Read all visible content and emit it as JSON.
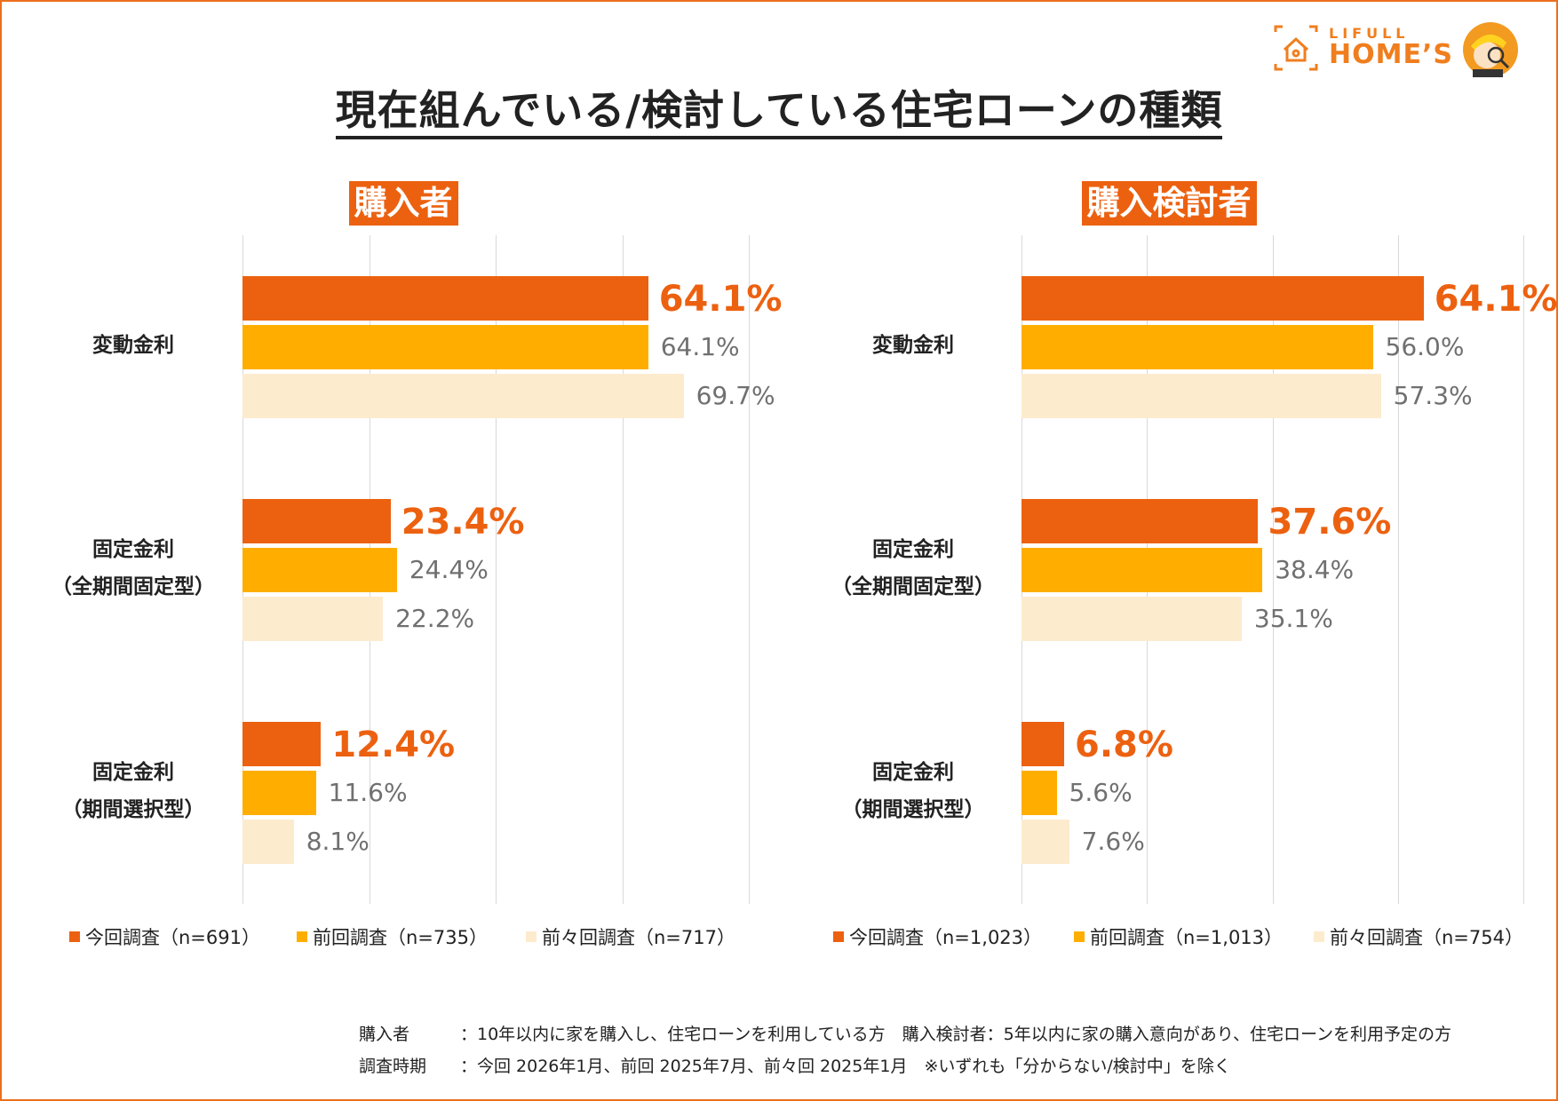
{
  "title": "現在組んでいる/検討している住宅ローンの種類",
  "logo": {
    "small": "LIFULL",
    "big": "HOME’S"
  },
  "colors": {
    "current": "#EC6110",
    "previous": "#FFAE00",
    "before_previous": "#FDEBCE",
    "accent": "#EC6F1E"
  },
  "chart_data": [
    {
      "type": "bar",
      "orientation": "horizontal",
      "title": "購入者",
      "categories": [
        "変動金利",
        "固定金利\n（全期間固定型）",
        "固定金利\n（期間選択型）"
      ],
      "category_lines": [
        [
          "変動金利"
        ],
        [
          "固定金利",
          "（全期間固定型）"
        ],
        [
          "固定金利",
          "（期間選択型）"
        ]
      ],
      "series": [
        {
          "name": "今回調査（n=691）",
          "values": [
            64.1,
            23.4,
            12.4
          ],
          "labels": [
            "64.1%",
            "23.4%",
            "12.4%"
          ]
        },
        {
          "name": "前回調査（n=735）",
          "values": [
            64.1,
            24.4,
            11.6
          ],
          "labels": [
            "64.1%",
            "24.4%",
            "11.6%"
          ]
        },
        {
          "name": "前々回調査（n=717）",
          "values": [
            69.7,
            22.2,
            8.1
          ],
          "labels": [
            "69.7%",
            "22.2%",
            "8.1%"
          ]
        }
      ],
      "xlim": [
        0,
        80
      ],
      "grid": true,
      "legend_position": "bottom"
    },
    {
      "type": "bar",
      "orientation": "horizontal",
      "title": "購入検討者",
      "categories": [
        "変動金利",
        "固定金利\n（全期間固定型）",
        "固定金利\n（期間選択型）"
      ],
      "category_lines": [
        [
          "変動金利"
        ],
        [
          "固定金利",
          "（全期間固定型）"
        ],
        [
          "固定金利",
          "（期間選択型）"
        ]
      ],
      "series": [
        {
          "name": "今回調査（n=1,023）",
          "values": [
            64.1,
            37.6,
            6.8
          ],
          "labels": [
            "64.1%",
            "37.6%",
            "6.8%"
          ]
        },
        {
          "name": "前回調査（n=1,013）",
          "values": [
            56.0,
            38.4,
            5.6
          ],
          "labels": [
            "56.0%",
            "38.4%",
            "5.6%"
          ]
        },
        {
          "name": "前々回調査（n=754）",
          "values": [
            57.3,
            35.1,
            7.6
          ],
          "labels": [
            "57.3%",
            "35.1%",
            "7.6%"
          ]
        }
      ],
      "xlim": [
        0,
        80
      ],
      "grid": true,
      "legend_position": "bottom"
    }
  ],
  "notes": [
    "購入者　　　：10年以内に家を購入し、住宅ローンを利用している方　購入検討者：5年以内に家の購入意向があり、住宅ローンを利用予定の方",
    "調査時期　　：今回 2026年1月、前回 2025年7月、前々回 2025年1月　※いずれも「分からない/検討中」を除く"
  ]
}
